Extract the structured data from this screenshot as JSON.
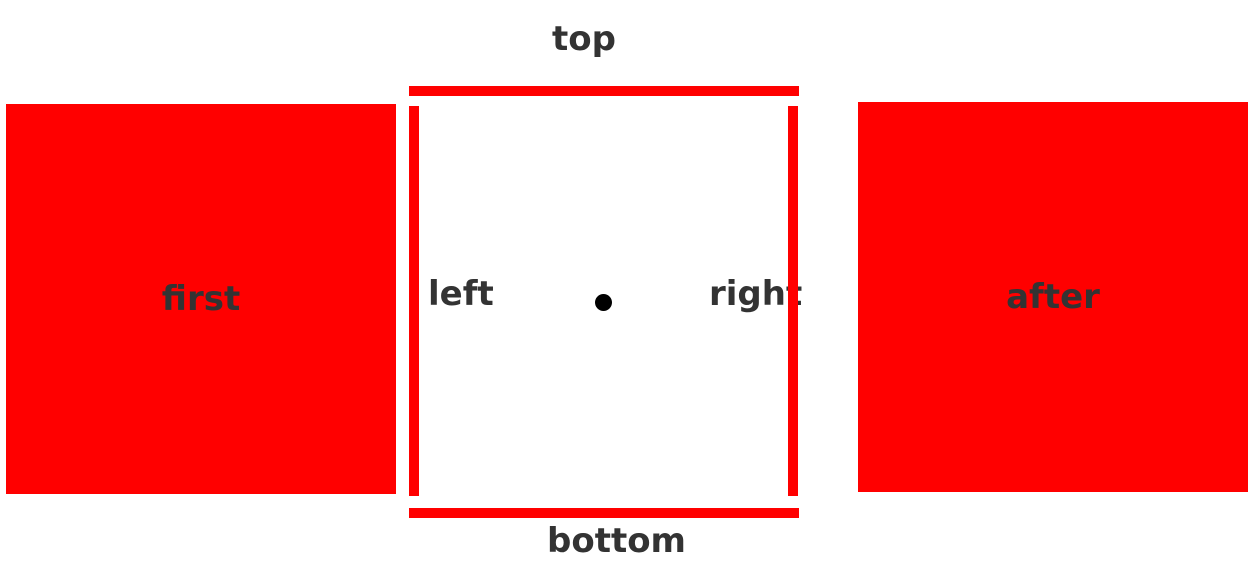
{
  "colors": {
    "accent": "#ff0000",
    "text": "#333333",
    "dot": "#000000",
    "background": "#ffffff"
  },
  "blocks": {
    "first": "first",
    "after": "after"
  },
  "edges": {
    "top": "top",
    "bottom": "bottom",
    "left": "left",
    "right": "right"
  }
}
